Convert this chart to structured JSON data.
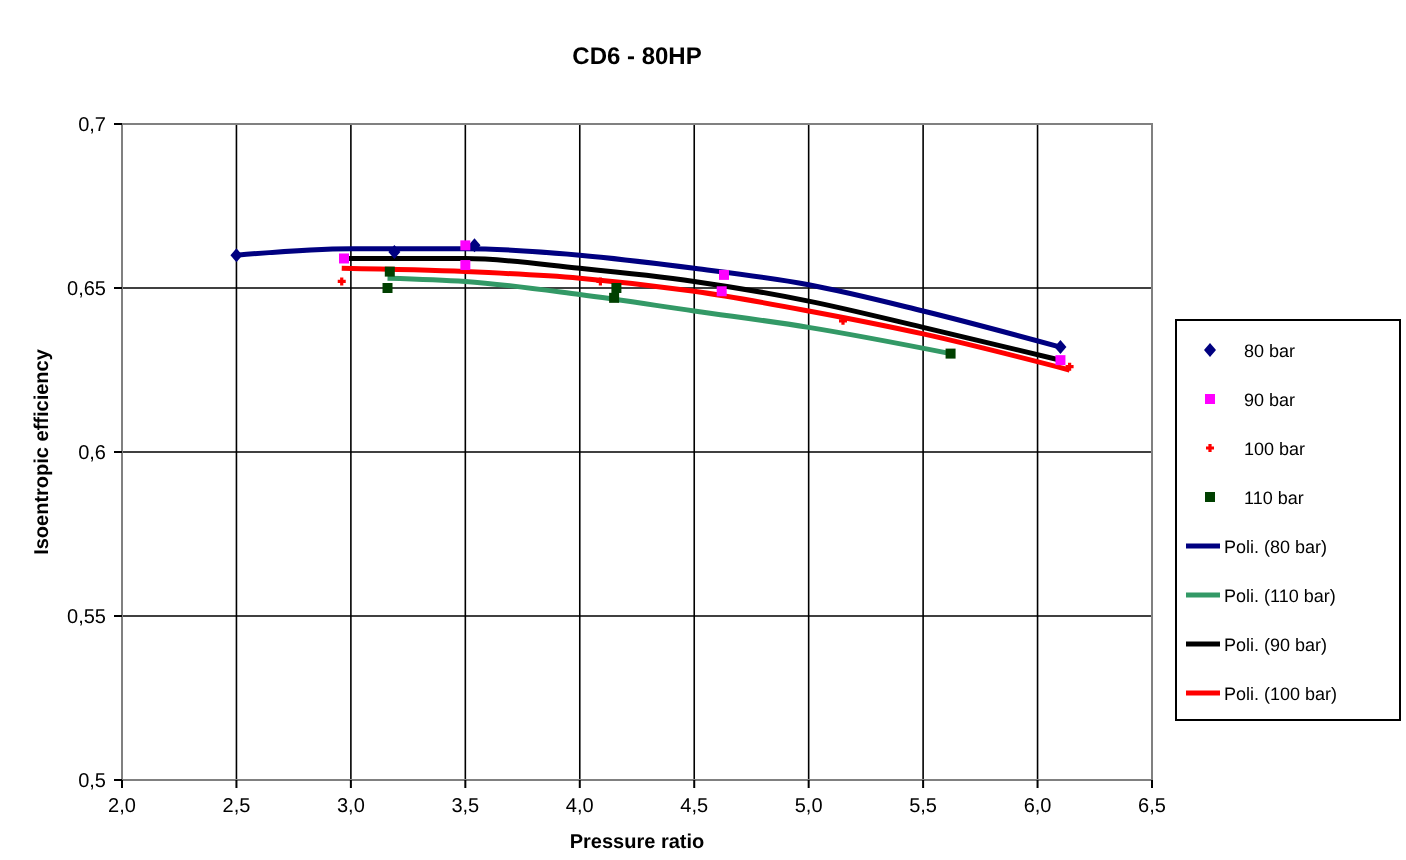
{
  "chart_data": {
    "type": "scatter",
    "title": "CD6 - 80HP",
    "xlabel": "Pressure ratio",
    "ylabel": "Isoentropic efficiency",
    "xlim": [
      2,
      6.5
    ],
    "xticks": [
      {
        "value": 2,
        "label": "2,0"
      },
      {
        "value": 2.5,
        "label": "2,5"
      },
      {
        "value": 3,
        "label": "3,0"
      },
      {
        "value": 3.5,
        "label": "3,5"
      },
      {
        "value": 4,
        "label": "4,0"
      },
      {
        "value": 4.5,
        "label": "4,5"
      },
      {
        "value": 5,
        "label": "5,0"
      },
      {
        "value": 5.5,
        "label": "5,5"
      },
      {
        "value": 6,
        "label": "6,0"
      },
      {
        "value": 6.5,
        "label": "6,5"
      }
    ],
    "ylim": [
      0.5,
      0.7
    ],
    "yticks": [
      {
        "value": 0.5,
        "label": "0,5"
      },
      {
        "value": 0.55,
        "label": "0,55"
      },
      {
        "value": 0.6,
        "label": "0,6"
      },
      {
        "value": 0.65,
        "label": "0,65"
      },
      {
        "value": 0.7,
        "label": "0,7"
      }
    ],
    "grid": true,
    "legend": "right",
    "series": [
      {
        "name": "80 bar",
        "marker": "diamond",
        "color": "#000080",
        "x": [
          2.5,
          3.19,
          3.54,
          6.1
        ],
        "values": [
          0.66,
          0.661,
          0.663,
          0.632
        ]
      },
      {
        "name": "90 bar",
        "marker": "square",
        "color": "#ff00ff",
        "x": [
          2.97,
          3.5,
          3.5,
          4.63,
          4.62,
          6.1
        ],
        "values": [
          0.659,
          0.663,
          0.657,
          0.654,
          0.649,
          0.628
        ]
      },
      {
        "name": "100 bar",
        "marker": "cross",
        "color": "#ff0000",
        "x": [
          2.96,
          4.09,
          5.15,
          6.14
        ],
        "values": [
          0.652,
          0.652,
          0.64,
          0.626
        ]
      },
      {
        "name": "110 bar",
        "marker": "square",
        "color": "#004000",
        "x": [
          3.16,
          3.17,
          4.15,
          4.16,
          5.62
        ],
        "values": [
          0.65,
          0.655,
          0.647,
          0.65,
          0.63
        ]
      },
      {
        "name": "Poli. (80 bar)",
        "type": "line",
        "color": "#000080",
        "x": [
          2.5,
          3,
          3.5,
          4,
          4.5,
          5,
          5.5,
          6.1
        ],
        "values": [
          0.66,
          0.662,
          0.662,
          0.66,
          0.656,
          0.651,
          0.643,
          0.632
        ]
      },
      {
        "name": "Poli. (110 bar)",
        "type": "line",
        "color": "#339966",
        "x": [
          3.16,
          3.5,
          4,
          4.5,
          5,
          5.62
        ],
        "values": [
          0.653,
          0.652,
          0.648,
          0.643,
          0.638,
          0.63
        ]
      },
      {
        "name": "Poli. (90 bar)",
        "type": "line",
        "color": "#000000",
        "x": [
          2.97,
          3.5,
          4,
          4.5,
          5,
          5.5,
          6.1
        ],
        "values": [
          0.659,
          0.659,
          0.656,
          0.652,
          0.646,
          0.638,
          0.628
        ]
      },
      {
        "name": "Poli. (100 bar)",
        "type": "line",
        "color": "#ff0000",
        "x": [
          2.96,
          3.5,
          4,
          4.5,
          5,
          5.5,
          6.14
        ],
        "values": [
          0.656,
          0.655,
          0.653,
          0.649,
          0.643,
          0.636,
          0.625
        ]
      }
    ]
  }
}
